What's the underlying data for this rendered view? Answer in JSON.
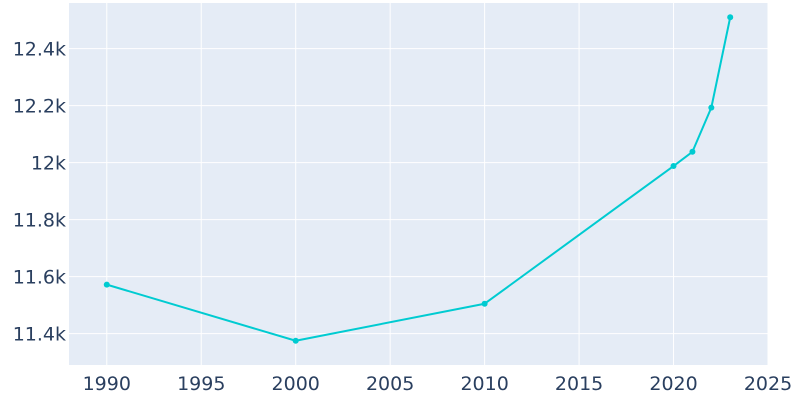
{
  "chart_data": {
    "type": "line",
    "title": "",
    "xlabel": "",
    "ylabel": "",
    "x": [
      1990,
      2000,
      2010,
      2020,
      2021,
      2022,
      2023
    ],
    "series": [
      {
        "values": [
          11572,
          11375,
          11505,
          11988,
          12038,
          12193,
          12510
        ]
      }
    ],
    "xlim": [
      1988,
      2025
    ],
    "ylim": [
      11290,
      12560
    ],
    "x_ticks": [
      1990,
      1995,
      2000,
      2005,
      2010,
      2015,
      2020,
      2025
    ],
    "x_tick_labels": [
      "1990",
      "1995",
      "2000",
      "2005",
      "2010",
      "2015",
      "2020",
      "2025"
    ],
    "y_ticks": [
      11400,
      11600,
      11800,
      12000,
      12200,
      12400
    ],
    "y_tick_labels": [
      "11.4k",
      "11.6k",
      "11.8k",
      "12k",
      "12.2k",
      "12.4k"
    ],
    "grid": true,
    "colors": {
      "plot_background": "#e5ecf6",
      "grid": "#ffffff",
      "line": "#00cbd1",
      "tick_text": "#2a3f5f"
    }
  }
}
